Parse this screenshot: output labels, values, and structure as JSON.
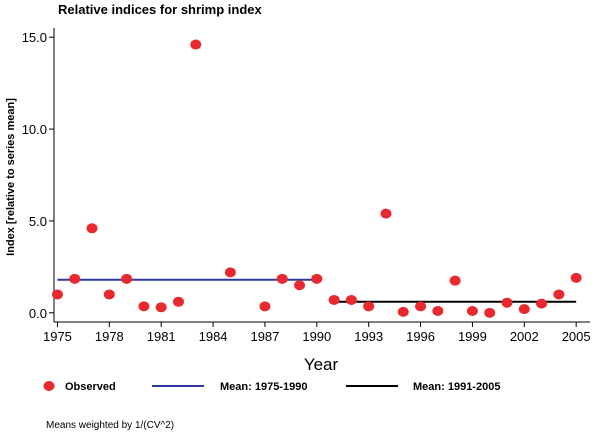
{
  "chart_data": {
    "type": "scatter",
    "title": "Relative indices for shrimp index",
    "xlabel": "Year",
    "ylabel": "Index [relative to series mean]",
    "xlim": [
      1974.8,
      2005.8
    ],
    "ylim": [
      -0.5,
      15.5
    ],
    "xticks": [
      1975,
      1978,
      1981,
      1984,
      1987,
      1990,
      1993,
      1996,
      1999,
      2002,
      2005
    ],
    "yticks": [
      0,
      5,
      10,
      15
    ],
    "ytick_labels": [
      "0.0",
      "5.0",
      "10.0",
      "15.0"
    ],
    "grid": false,
    "legend_position": "bottom",
    "series": [
      {
        "name": "Observed",
        "kind": "points",
        "color": "#e8292f",
        "points": [
          {
            "x": 1975,
            "y": 1.0
          },
          {
            "x": 1976,
            "y": 1.85
          },
          {
            "x": 1977,
            "y": 4.6
          },
          {
            "x": 1978,
            "y": 1.0
          },
          {
            "x": 1979,
            "y": 1.85
          },
          {
            "x": 1980,
            "y": 0.35
          },
          {
            "x": 1981,
            "y": 0.3
          },
          {
            "x": 1982,
            "y": 0.6
          },
          {
            "x": 1983,
            "y": 14.6
          },
          {
            "x": 1985,
            "y": 2.2
          },
          {
            "x": 1987,
            "y": 0.35
          },
          {
            "x": 1988,
            "y": 1.85
          },
          {
            "x": 1989,
            "y": 1.5
          },
          {
            "x": 1990,
            "y": 1.85
          },
          {
            "x": 1991,
            "y": 0.7
          },
          {
            "x": 1992,
            "y": 0.7
          },
          {
            "x": 1993,
            "y": 0.35
          },
          {
            "x": 1994,
            "y": 5.4
          },
          {
            "x": 1995,
            "y": 0.05
          },
          {
            "x": 1996,
            "y": 0.35
          },
          {
            "x": 1997,
            "y": 0.1
          },
          {
            "x": 1998,
            "y": 1.75
          },
          {
            "x": 1999,
            "y": 0.1
          },
          {
            "x": 2000,
            "y": 0.0
          },
          {
            "x": 2001,
            "y": 0.55
          },
          {
            "x": 2002,
            "y": 0.2
          },
          {
            "x": 2003,
            "y": 0.5
          },
          {
            "x": 2004,
            "y": 1.0
          },
          {
            "x": 2005,
            "y": 1.9
          }
        ]
      },
      {
        "name": "Mean: 1975-1990",
        "kind": "line",
        "color": "#2b3a9e",
        "x": [
          1975,
          1990
        ],
        "y": [
          1.8,
          1.8
        ]
      },
      {
        "name": "Mean: 1991-2005",
        "kind": "line",
        "color": "#000000",
        "x": [
          1991,
          2005
        ],
        "y": [
          0.6,
          0.6
        ]
      }
    ],
    "footnote": "Means weighted by 1/(CV^2)"
  }
}
